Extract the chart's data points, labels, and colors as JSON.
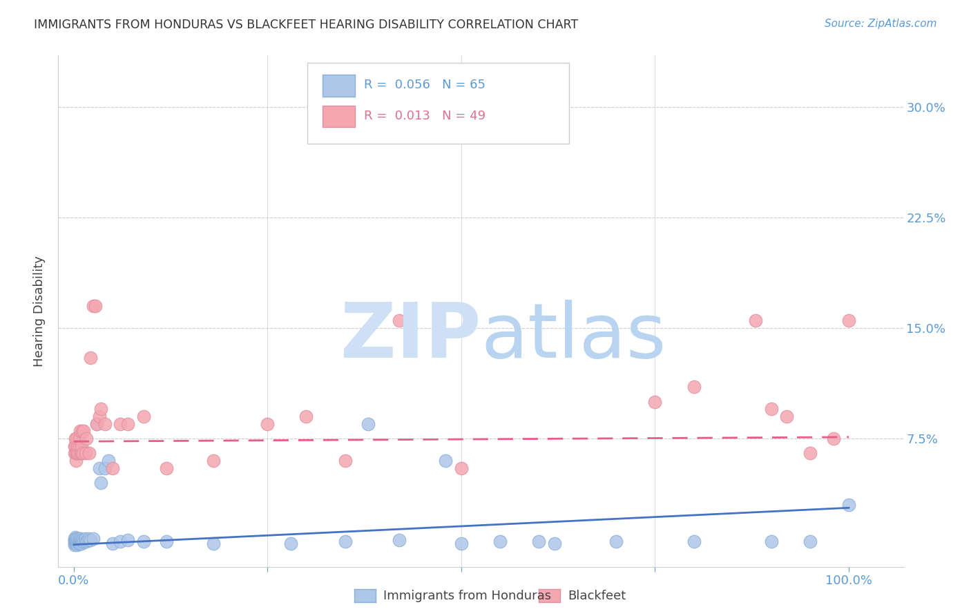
{
  "title": "IMMIGRANTS FROM HONDURAS VS BLACKFEET HEARING DISABILITY CORRELATION CHART",
  "source": "Source: ZipAtlas.com",
  "ylabel": "Hearing Disability",
  "blue_R": 0.056,
  "blue_N": 65,
  "pink_R": 0.013,
  "pink_N": 49,
  "blue_label": "Immigrants from Honduras",
  "pink_label": "Blackfeet",
  "axis_color": "#5b9bd5",
  "blue_scatter_color": "#aec6e8",
  "pink_scatter_color": "#f4a7b0",
  "blue_edge_color": "#8ab0d8",
  "pink_edge_color": "#e090a0",
  "blue_line_color": "#4472c4",
  "pink_line_color": "#e85c8a",
  "grid_color": "#cccccc",
  "watermark_zip_color": "#cde0f5",
  "watermark_atlas_color": "#b8d4f0",
  "blue_x": [
    0.001,
    0.001,
    0.001,
    0.001,
    0.001,
    0.002,
    0.002,
    0.002,
    0.002,
    0.002,
    0.003,
    0.003,
    0.003,
    0.003,
    0.004,
    0.004,
    0.004,
    0.005,
    0.005,
    0.005,
    0.006,
    0.006,
    0.007,
    0.007,
    0.008,
    0.008,
    0.009,
    0.009,
    0.01,
    0.01,
    0.011,
    0.012,
    0.013,
    0.014,
    0.015,
    0.016,
    0.018,
    0.02,
    0.022,
    0.025,
    0.03,
    0.033,
    0.035,
    0.04,
    0.045,
    0.05,
    0.06,
    0.07,
    0.09,
    0.12,
    0.18,
    0.28,
    0.35,
    0.42,
    0.5,
    0.6,
    0.7,
    0.8,
    0.9,
    0.95,
    1.0,
    0.38,
    0.48,
    0.55,
    0.62
  ],
  "blue_y": [
    0.004,
    0.005,
    0.006,
    0.007,
    0.003,
    0.004,
    0.005,
    0.006,
    0.007,
    0.008,
    0.004,
    0.005,
    0.006,
    0.007,
    0.004,
    0.005,
    0.006,
    0.003,
    0.005,
    0.007,
    0.004,
    0.006,
    0.004,
    0.007,
    0.004,
    0.006,
    0.005,
    0.007,
    0.004,
    0.006,
    0.005,
    0.006,
    0.005,
    0.006,
    0.007,
    0.005,
    0.006,
    0.007,
    0.006,
    0.007,
    0.085,
    0.055,
    0.045,
    0.055,
    0.06,
    0.004,
    0.005,
    0.006,
    0.005,
    0.005,
    0.004,
    0.004,
    0.005,
    0.006,
    0.004,
    0.005,
    0.005,
    0.005,
    0.005,
    0.005,
    0.03,
    0.085,
    0.06,
    0.005,
    0.004
  ],
  "pink_x": [
    0.001,
    0.001,
    0.002,
    0.002,
    0.003,
    0.003,
    0.004,
    0.004,
    0.005,
    0.005,
    0.006,
    0.007,
    0.007,
    0.008,
    0.009,
    0.01,
    0.01,
    0.011,
    0.012,
    0.013,
    0.015,
    0.016,
    0.02,
    0.022,
    0.025,
    0.028,
    0.03,
    0.033,
    0.035,
    0.04,
    0.05,
    0.06,
    0.07,
    0.09,
    0.12,
    0.18,
    0.25,
    0.3,
    0.35,
    0.42,
    0.5,
    0.75,
    0.8,
    0.88,
    0.9,
    0.92,
    0.95,
    0.98,
    1.0
  ],
  "pink_y": [
    0.065,
    0.07,
    0.07,
    0.075,
    0.06,
    0.065,
    0.065,
    0.075,
    0.065,
    0.07,
    0.065,
    0.07,
    0.075,
    0.08,
    0.065,
    0.065,
    0.07,
    0.08,
    0.065,
    0.08,
    0.065,
    0.075,
    0.065,
    0.13,
    0.165,
    0.165,
    0.085,
    0.09,
    0.095,
    0.085,
    0.055,
    0.085,
    0.085,
    0.09,
    0.055,
    0.06,
    0.085,
    0.09,
    0.06,
    0.155,
    0.055,
    0.1,
    0.11,
    0.155,
    0.095,
    0.09,
    0.065,
    0.075,
    0.155
  ],
  "blue_trend_x": [
    0.0,
    1.0
  ],
  "blue_trend_y": [
    0.003,
    0.028
  ],
  "pink_trend_x": [
    0.0,
    1.0
  ],
  "pink_trend_y": [
    0.073,
    0.076
  ],
  "ylim_low": -0.012,
  "ylim_high": 0.335,
  "xlim_low": -0.02,
  "xlim_high": 1.07
}
